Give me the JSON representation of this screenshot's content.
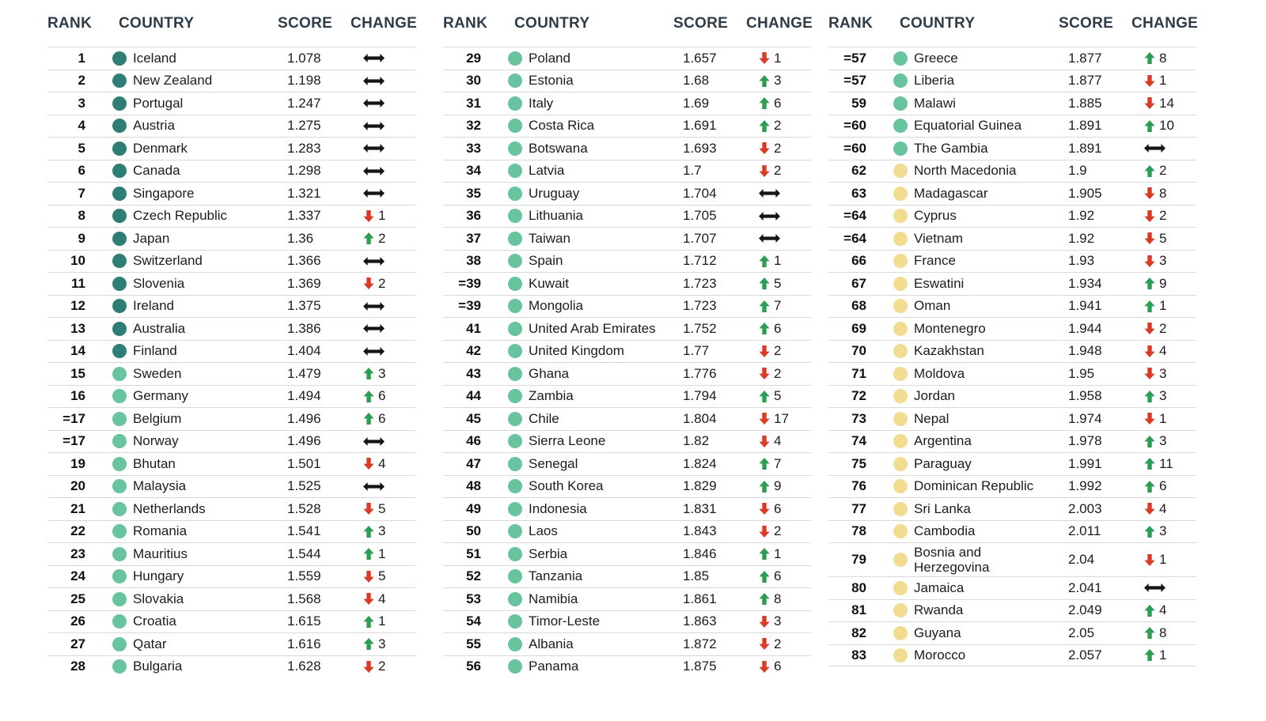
{
  "headers": {
    "rank": "RANK",
    "country": "COUNTRY",
    "score": "SCORE",
    "change": "CHANGE"
  },
  "colors": {
    "header_text": "#2E3C49",
    "row_text": "#1C1C1C",
    "divider": "#D9D9D9",
    "arrow_up": "#2E9D54",
    "arrow_down": "#D93B26",
    "arrow_same": "#141414"
  },
  "tier_colors": {
    "dark_teal": "#2F7E76",
    "green": "#68C49F",
    "yellow": "#F2DC92"
  },
  "change_legend": {
    "up": "rank improved",
    "down": "rank worsened",
    "same": "no change"
  },
  "tables": [
    {
      "rows": [
        {
          "rank": "1",
          "country": "Iceland",
          "score": "1.078",
          "tier": "dark_teal",
          "dir": "same",
          "delta": ""
        },
        {
          "rank": "2",
          "country": "New Zealand",
          "score": "1.198",
          "tier": "dark_teal",
          "dir": "same",
          "delta": ""
        },
        {
          "rank": "3",
          "country": "Portugal",
          "score": "1.247",
          "tier": "dark_teal",
          "dir": "same",
          "delta": ""
        },
        {
          "rank": "4",
          "country": "Austria",
          "score": "1.275",
          "tier": "dark_teal",
          "dir": "same",
          "delta": ""
        },
        {
          "rank": "5",
          "country": "Denmark",
          "score": "1.283",
          "tier": "dark_teal",
          "dir": "same",
          "delta": ""
        },
        {
          "rank": "6",
          "country": "Canada",
          "score": "1.298",
          "tier": "dark_teal",
          "dir": "same",
          "delta": ""
        },
        {
          "rank": "7",
          "country": "Singapore",
          "score": "1.321",
          "tier": "dark_teal",
          "dir": "same",
          "delta": ""
        },
        {
          "rank": "8",
          "country": "Czech Republic",
          "score": "1.337",
          "tier": "dark_teal",
          "dir": "down",
          "delta": "1"
        },
        {
          "rank": "9",
          "country": "Japan",
          "score": "1.36",
          "tier": "dark_teal",
          "dir": "up",
          "delta": "2"
        },
        {
          "rank": "10",
          "country": "Switzerland",
          "score": "1.366",
          "tier": "dark_teal",
          "dir": "same",
          "delta": ""
        },
        {
          "rank": "11",
          "country": "Slovenia",
          "score": "1.369",
          "tier": "dark_teal",
          "dir": "down",
          "delta": "2"
        },
        {
          "rank": "12",
          "country": "Ireland",
          "score": "1.375",
          "tier": "dark_teal",
          "dir": "same",
          "delta": ""
        },
        {
          "rank": "13",
          "country": "Australia",
          "score": "1.386",
          "tier": "dark_teal",
          "dir": "same",
          "delta": ""
        },
        {
          "rank": "14",
          "country": "Finland",
          "score": "1.404",
          "tier": "dark_teal",
          "dir": "same",
          "delta": ""
        },
        {
          "rank": "15",
          "country": "Sweden",
          "score": "1.479",
          "tier": "green",
          "dir": "up",
          "delta": "3"
        },
        {
          "rank": "16",
          "country": "Germany",
          "score": "1.494",
          "tier": "green",
          "dir": "up",
          "delta": "6"
        },
        {
          "rank": "=17",
          "country": "Belgium",
          "score": "1.496",
          "tier": "green",
          "dir": "up",
          "delta": "6"
        },
        {
          "rank": "=17",
          "country": "Norway",
          "score": "1.496",
          "tier": "green",
          "dir": "same",
          "delta": ""
        },
        {
          "rank": "19",
          "country": "Bhutan",
          "score": "1.501",
          "tier": "green",
          "dir": "down",
          "delta": "4"
        },
        {
          "rank": "20",
          "country": "Malaysia",
          "score": "1.525",
          "tier": "green",
          "dir": "same",
          "delta": ""
        },
        {
          "rank": "21",
          "country": "Netherlands",
          "score": "1.528",
          "tier": "green",
          "dir": "down",
          "delta": "5"
        },
        {
          "rank": "22",
          "country": "Romania",
          "score": "1.541",
          "tier": "green",
          "dir": "up",
          "delta": "3"
        },
        {
          "rank": "23",
          "country": "Mauritius",
          "score": "1.544",
          "tier": "green",
          "dir": "up",
          "delta": "1"
        },
        {
          "rank": "24",
          "country": "Hungary",
          "score": "1.559",
          "tier": "green",
          "dir": "down",
          "delta": "5"
        },
        {
          "rank": "25",
          "country": "Slovakia",
          "score": "1.568",
          "tier": "green",
          "dir": "down",
          "delta": "4"
        },
        {
          "rank": "26",
          "country": "Croatia",
          "score": "1.615",
          "tier": "green",
          "dir": "up",
          "delta": "1"
        },
        {
          "rank": "27",
          "country": "Qatar",
          "score": "1.616",
          "tier": "green",
          "dir": "up",
          "delta": "3"
        },
        {
          "rank": "28",
          "country": "Bulgaria",
          "score": "1.628",
          "tier": "green",
          "dir": "down",
          "delta": "2"
        }
      ]
    },
    {
      "rows": [
        {
          "rank": "29",
          "country": "Poland",
          "score": "1.657",
          "tier": "green",
          "dir": "down",
          "delta": "1"
        },
        {
          "rank": "30",
          "country": "Estonia",
          "score": "1.68",
          "tier": "green",
          "dir": "up",
          "delta": "3"
        },
        {
          "rank": "31",
          "country": "Italy",
          "score": "1.69",
          "tier": "green",
          "dir": "up",
          "delta": "6"
        },
        {
          "rank": "32",
          "country": "Costa Rica",
          "score": "1.691",
          "tier": "green",
          "dir": "up",
          "delta": "2"
        },
        {
          "rank": "33",
          "country": "Botswana",
          "score": "1.693",
          "tier": "green",
          "dir": "down",
          "delta": "2"
        },
        {
          "rank": "34",
          "country": "Latvia",
          "score": "1.7",
          "tier": "green",
          "dir": "down",
          "delta": "2"
        },
        {
          "rank": "35",
          "country": "Uruguay",
          "score": "1.704",
          "tier": "green",
          "dir": "same",
          "delta": ""
        },
        {
          "rank": "36",
          "country": "Lithuania",
          "score": "1.705",
          "tier": "green",
          "dir": "same",
          "delta": ""
        },
        {
          "rank": "37",
          "country": "Taiwan",
          "score": "1.707",
          "tier": "green",
          "dir": "same",
          "delta": ""
        },
        {
          "rank": "38",
          "country": "Spain",
          "score": "1.712",
          "tier": "green",
          "dir": "up",
          "delta": "1"
        },
        {
          "rank": "=39",
          "country": "Kuwait",
          "score": "1.723",
          "tier": "green",
          "dir": "up",
          "delta": "5"
        },
        {
          "rank": "=39",
          "country": "Mongolia",
          "score": "1.723",
          "tier": "green",
          "dir": "up",
          "delta": "7"
        },
        {
          "rank": "41",
          "country": "United Arab Emirates",
          "score": "1.752",
          "tier": "green",
          "dir": "up",
          "delta": "6"
        },
        {
          "rank": "42",
          "country": "United Kingdom",
          "score": "1.77",
          "tier": "green",
          "dir": "down",
          "delta": "2"
        },
        {
          "rank": "43",
          "country": "Ghana",
          "score": "1.776",
          "tier": "green",
          "dir": "down",
          "delta": "2"
        },
        {
          "rank": "44",
          "country": "Zambia",
          "score": "1.794",
          "tier": "green",
          "dir": "up",
          "delta": "5"
        },
        {
          "rank": "45",
          "country": "Chile",
          "score": "1.804",
          "tier": "green",
          "dir": "down",
          "delta": "17"
        },
        {
          "rank": "46",
          "country": "Sierra Leone",
          "score": "1.82",
          "tier": "green",
          "dir": "down",
          "delta": "4"
        },
        {
          "rank": "47",
          "country": "Senegal",
          "score": "1.824",
          "tier": "green",
          "dir": "up",
          "delta": "7"
        },
        {
          "rank": "48",
          "country": "South Korea",
          "score": "1.829",
          "tier": "green",
          "dir": "up",
          "delta": "9"
        },
        {
          "rank": "49",
          "country": "Indonesia",
          "score": "1.831",
          "tier": "green",
          "dir": "down",
          "delta": "6"
        },
        {
          "rank": "50",
          "country": "Laos",
          "score": "1.843",
          "tier": "green",
          "dir": "down",
          "delta": "2"
        },
        {
          "rank": "51",
          "country": "Serbia",
          "score": "1.846",
          "tier": "green",
          "dir": "up",
          "delta": "1"
        },
        {
          "rank": "52",
          "country": "Tanzania",
          "score": "1.85",
          "tier": "green",
          "dir": "up",
          "delta": "6"
        },
        {
          "rank": "53",
          "country": "Namibia",
          "score": "1.861",
          "tier": "green",
          "dir": "up",
          "delta": "8"
        },
        {
          "rank": "54",
          "country": "Timor-Leste",
          "score": "1.863",
          "tier": "green",
          "dir": "down",
          "delta": "3"
        },
        {
          "rank": "55",
          "country": "Albania",
          "score": "1.872",
          "tier": "green",
          "dir": "down",
          "delta": "2"
        },
        {
          "rank": "56",
          "country": "Panama",
          "score": "1.875",
          "tier": "green",
          "dir": "down",
          "delta": "6"
        }
      ]
    },
    {
      "rows": [
        {
          "rank": "=57",
          "country": "Greece",
          "score": "1.877",
          "tier": "green",
          "dir": "up",
          "delta": "8"
        },
        {
          "rank": "=57",
          "country": "Liberia",
          "score": "1.877",
          "tier": "green",
          "dir": "down",
          "delta": "1"
        },
        {
          "rank": "59",
          "country": "Malawi",
          "score": "1.885",
          "tier": "green",
          "dir": "down",
          "delta": "14"
        },
        {
          "rank": "=60",
          "country": "Equatorial Guinea",
          "score": "1.891",
          "tier": "green",
          "dir": "up",
          "delta": "10"
        },
        {
          "rank": "=60",
          "country": "The Gambia",
          "score": "1.891",
          "tier": "green",
          "dir": "same",
          "delta": ""
        },
        {
          "rank": "62",
          "country": "North Macedonia",
          "score": "1.9",
          "tier": "yellow",
          "dir": "up",
          "delta": "2"
        },
        {
          "rank": "63",
          "country": "Madagascar",
          "score": "1.905",
          "tier": "yellow",
          "dir": "down",
          "delta": "8"
        },
        {
          "rank": "=64",
          "country": "Cyprus",
          "score": "1.92",
          "tier": "yellow",
          "dir": "down",
          "delta": "2"
        },
        {
          "rank": "=64",
          "country": "Vietnam",
          "score": "1.92",
          "tier": "yellow",
          "dir": "down",
          "delta": "5"
        },
        {
          "rank": "66",
          "country": "France",
          "score": "1.93",
          "tier": "yellow",
          "dir": "down",
          "delta": "3"
        },
        {
          "rank": "67",
          "country": "Eswatini",
          "score": "1.934",
          "tier": "yellow",
          "dir": "up",
          "delta": "9"
        },
        {
          "rank": "68",
          "country": "Oman",
          "score": "1.941",
          "tier": "yellow",
          "dir": "up",
          "delta": "1"
        },
        {
          "rank": "69",
          "country": "Montenegro",
          "score": "1.944",
          "tier": "yellow",
          "dir": "down",
          "delta": "2"
        },
        {
          "rank": "70",
          "country": "Kazakhstan",
          "score": "1.948",
          "tier": "yellow",
          "dir": "down",
          "delta": "4"
        },
        {
          "rank": "71",
          "country": "Moldova",
          "score": "1.95",
          "tier": "yellow",
          "dir": "down",
          "delta": "3"
        },
        {
          "rank": "72",
          "country": "Jordan",
          "score": "1.958",
          "tier": "yellow",
          "dir": "up",
          "delta": "3"
        },
        {
          "rank": "73",
          "country": "Nepal",
          "score": "1.974",
          "tier": "yellow",
          "dir": "down",
          "delta": "1"
        },
        {
          "rank": "74",
          "country": "Argentina",
          "score": "1.978",
          "tier": "yellow",
          "dir": "up",
          "delta": "3"
        },
        {
          "rank": "75",
          "country": "Paraguay",
          "score": "1.991",
          "tier": "yellow",
          "dir": "up",
          "delta": "11"
        },
        {
          "rank": "76",
          "country": "Dominican Republic",
          "score": "1.992",
          "tier": "yellow",
          "dir": "up",
          "delta": "6"
        },
        {
          "rank": "77",
          "country": "Sri Lanka",
          "score": "2.003",
          "tier": "yellow",
          "dir": "down",
          "delta": "4"
        },
        {
          "rank": "78",
          "country": "Cambodia",
          "score": "2.011",
          "tier": "yellow",
          "dir": "up",
          "delta": "3"
        },
        {
          "rank": "79",
          "country": "Bosnia and Herzegovina",
          "score": "2.04",
          "tier": "yellow",
          "dir": "down",
          "delta": "1"
        },
        {
          "rank": "80",
          "country": "Jamaica",
          "score": "2.041",
          "tier": "yellow",
          "dir": "same",
          "delta": ""
        },
        {
          "rank": "81",
          "country": "Rwanda",
          "score": "2.049",
          "tier": "yellow",
          "dir": "up",
          "delta": "4"
        },
        {
          "rank": "82",
          "country": "Guyana",
          "score": "2.05",
          "tier": "yellow",
          "dir": "up",
          "delta": "8"
        },
        {
          "rank": "83",
          "country": "Morocco",
          "score": "2.057",
          "tier": "yellow",
          "dir": "up",
          "delta": "1"
        }
      ]
    }
  ]
}
